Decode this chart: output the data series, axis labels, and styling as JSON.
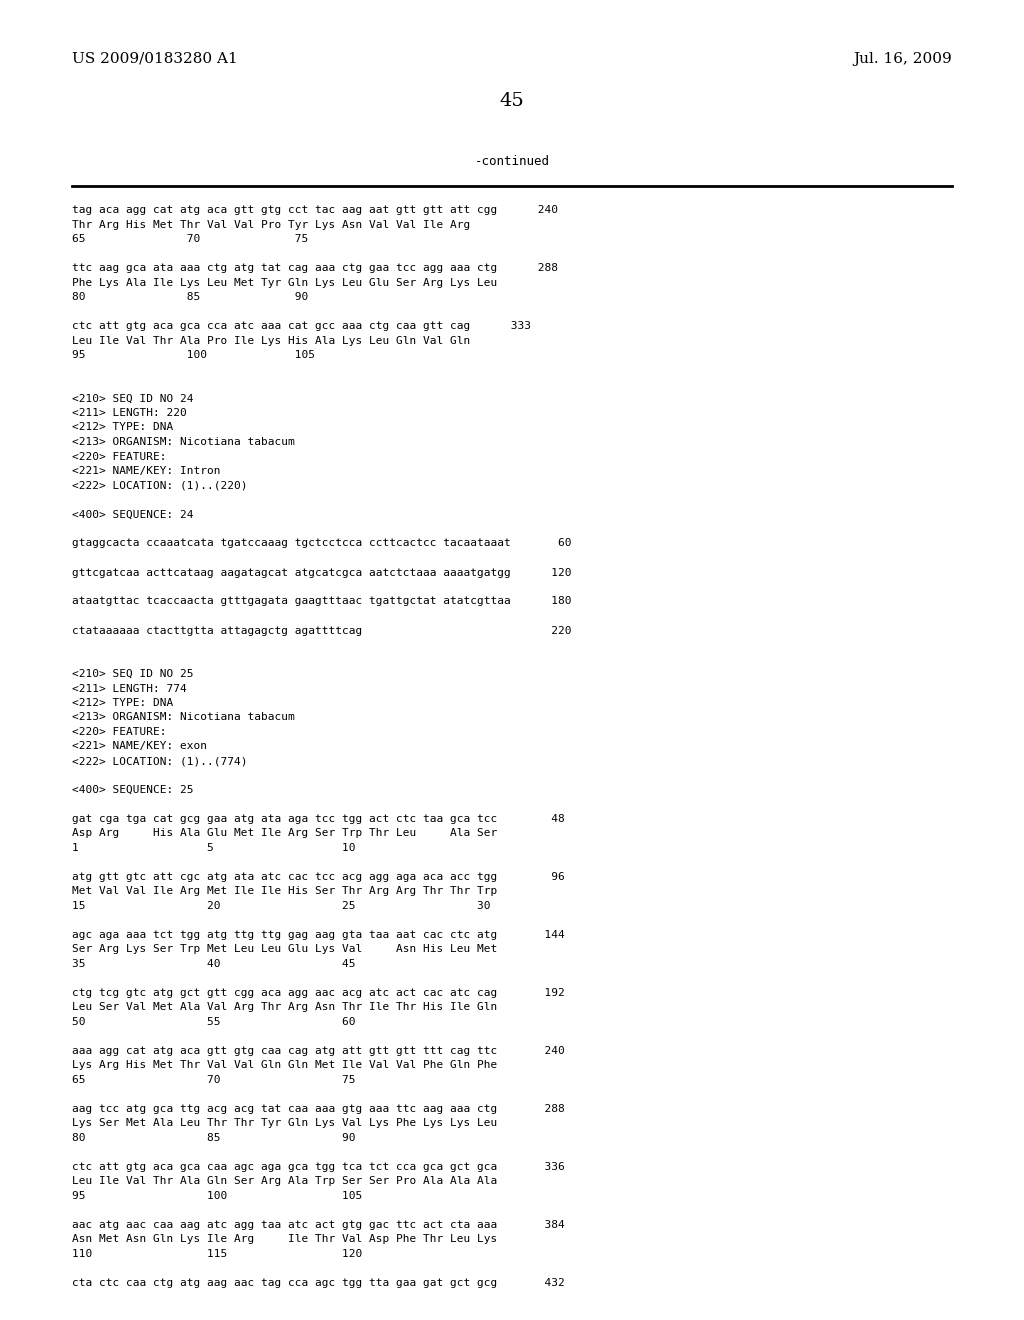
{
  "header_left": "US 2009/0183280 A1",
  "header_right": "Jul. 16, 2009",
  "page_number": "45",
  "continued_label": "-continued",
  "bg_color": "#ffffff",
  "text_color": "#000000",
  "content_lines": [
    "tag aca agg cat atg aca gtt gtg cct tac aag aat gtt gtt att cgg      240",
    "Thr Arg His Met Thr Val Val Pro Tyr Lys Asn Val Val Ile Arg",
    "65               70              75",
    "",
    "ttc aag gca ata aaa ctg atg tat cag aaa ctg gaa tcc agg aaa ctg      288",
    "Phe Lys Ala Ile Lys Leu Met Tyr Gln Lys Leu Glu Ser Arg Lys Leu",
    "80               85              90",
    "",
    "ctc att gtg aca gca cca atc aaa cat gcc aaa ctg caa gtt cag      333",
    "Leu Ile Val Thr Ala Pro Ile Lys His Ala Lys Leu Gln Val Gln",
    "95               100             105",
    "",
    "",
    "<210> SEQ ID NO 24",
    "<211> LENGTH: 220",
    "<212> TYPE: DNA",
    "<213> ORGANISM: Nicotiana tabacum",
    "<220> FEATURE:",
    "<221> NAME/KEY: Intron",
    "<222> LOCATION: (1)..(220)",
    "",
    "<400> SEQUENCE: 24",
    "",
    "gtaggcacta ccaaatcata tgatccaaag tgctcctcca ccttcactcc tacaataaat       60",
    "",
    "gttcgatcaa acttcataag aagatagcat atgcatcgca aatctctaaa aaaatgatgg      120",
    "",
    "ataatgttac tcaccaacta gtttgagata gaagtttaac tgattgctat atatcgttaa      180",
    "",
    "ctataaaaaa ctacttgtta attagagctg agattttcag                            220",
    "",
    "",
    "<210> SEQ ID NO 25",
    "<211> LENGTH: 774",
    "<212> TYPE: DNA",
    "<213> ORGANISM: Nicotiana tabacum",
    "<220> FEATURE:",
    "<221> NAME/KEY: exon",
    "<222> LOCATION: (1)..(774)",
    "",
    "<400> SEQUENCE: 25",
    "",
    "gat cga tga cat gcg gaa atg ata aga tcc tgg act ctc taa gca tcc        48",
    "Asp Arg     His Ala Glu Met Ile Arg Ser Trp Thr Leu     Ala Ser",
    "1                   5                   10",
    "",
    "atg gtt gtc att cgc atg ata atc cac tcc acg agg aga aca acc tgg        96",
    "Met Val Val Ile Arg Met Ile Ile His Ser Thr Arg Arg Thr Thr Trp",
    "15                  20                  25                  30",
    "",
    "agc aga aaa tct tgg atg ttg ttg gag aag gta taa aat cac ctc atg       144",
    "Ser Arg Lys Ser Trp Met Leu Leu Glu Lys Val     Asn His Leu Met",
    "35                  40                  45",
    "",
    "ctg tcg gtc atg gct gtt cgg aca agg aac acg atc act cac atc cag       192",
    "Leu Ser Val Met Ala Val Arg Thr Arg Asn Thr Ile Thr His Ile Gln",
    "50                  55                  60",
    "",
    "aaa agg cat atg aca gtt gtg caa cag atg att gtt gtt ttt cag ttc       240",
    "Lys Arg His Met Thr Val Val Gln Gln Met Ile Val Val Phe Gln Phe",
    "65                  70                  75",
    "",
    "aag tcc atg gca ttg acg acg tat caa aaa gtg aaa ttc aag aaa ctg       288",
    "Lys Ser Met Ala Leu Thr Thr Tyr Gln Lys Val Lys Phe Lys Lys Leu",
    "80                  85                  90",
    "",
    "ctc att gtg aca gca caa agc aga gca tgg tca tct cca gca gct gca       336",
    "Leu Ile Val Thr Ala Gln Ser Arg Ala Trp Ser Ser Pro Ala Ala Ala",
    "95                  100                 105",
    "",
    "aac atg aac caa aag atc agg taa atc act gtg gac ttc act cta aaa       384",
    "Asn Met Asn Gln Lys Ile Arg     Ile Thr Val Asp Phe Thr Leu Lys",
    "110                 115                 120",
    "",
    "cta ctc caa ctg atg aag aac tag cca agc tgg tta gaa gat gct gcg       432"
  ]
}
